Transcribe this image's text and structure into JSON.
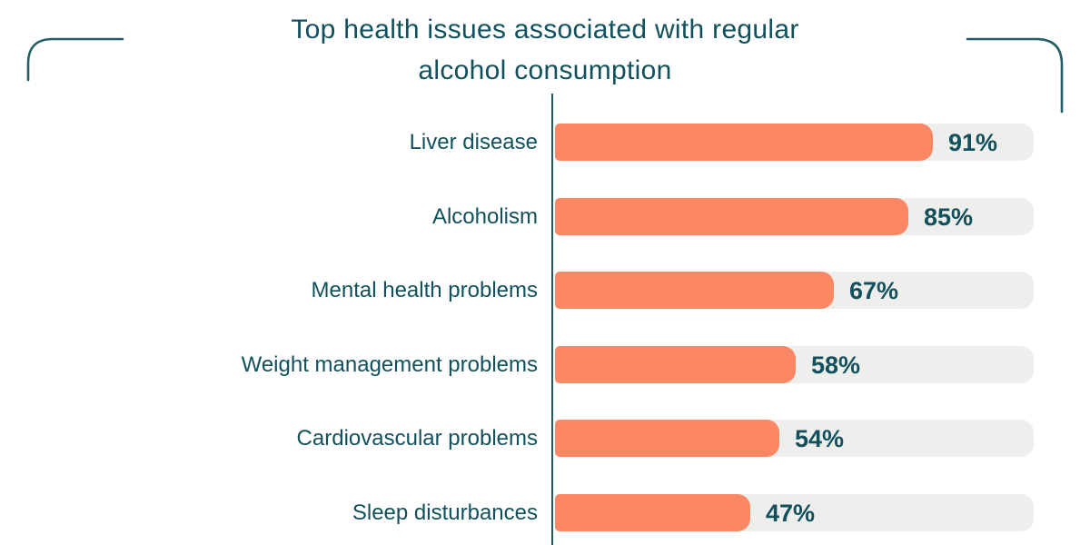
{
  "header": {
    "title_lines": [
      "Top health issues associated with regular",
      "alcohol consumption"
    ]
  },
  "chart_data": {
    "type": "bar",
    "orientation": "horizontal",
    "title": "Top health issues associated with regular alcohol consumption",
    "categories": [
      "Liver disease",
      "Alcoholism",
      "Mental health problems",
      "Weight management problems",
      "Cardiovascular problems",
      "Sleep disturbances"
    ],
    "values": [
      91,
      85,
      67,
      58,
      54,
      47
    ],
    "value_labels": [
      "91%",
      "85%",
      "67%",
      "58%",
      "54%",
      "47%"
    ],
    "value_suffix": "%",
    "xlim": [
      0,
      115
    ],
    "grid": false,
    "legend": false,
    "colors": {
      "bar": "#FB8764",
      "track": "#EEEFED",
      "text": "#11505C",
      "axis_line": "#235E66"
    }
  }
}
